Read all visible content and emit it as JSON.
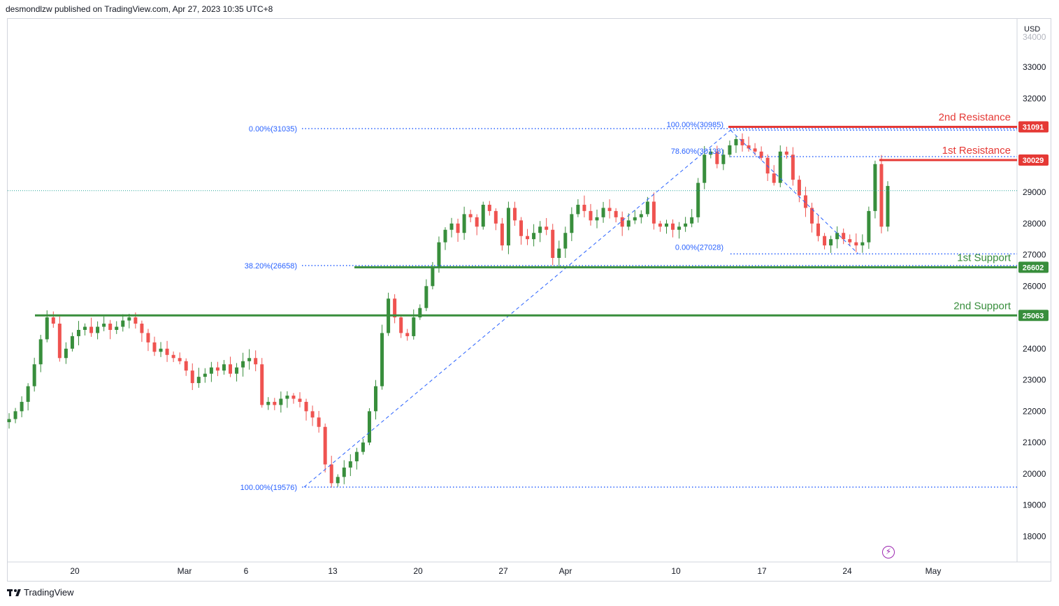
{
  "header": {
    "published": "desmondlzw published on TradingView.com, Apr 27, 2023 10:35 UTC+8"
  },
  "footer": {
    "brand": "TradingView",
    "logo_icon": "tradingview-logo-icon"
  },
  "colors": {
    "up": "#26a69a",
    "up_body": "#388e3c",
    "down": "#ef5350",
    "support": "#388e3c",
    "resistance": "#e53935",
    "fib": "#2962ff",
    "grid": "#f0f3fa"
  },
  "chart_data": {
    "type": "candlestick",
    "currency": "USD",
    "y_ticks": [
      "33000",
      "32000",
      "31000",
      "30000",
      "29000",
      "28000",
      "27000",
      "26000",
      "25000",
      "24000",
      "23000",
      "22000",
      "21000",
      "20000",
      "19000",
      "18000"
    ],
    "ylim": [
      17200,
      34300
    ],
    "x_ticks": [
      "20",
      "Mar",
      "6",
      "13",
      "20",
      "27",
      "Apr",
      "10",
      "17",
      "24",
      "May"
    ],
    "levels": [
      {
        "name": "2nd Resistance",
        "value": 31091,
        "label": "31091",
        "kind": "resistance"
      },
      {
        "name": "1st Resistance",
        "value": 30029,
        "label": "30029",
        "kind": "resistance"
      },
      {
        "name": "1st Support",
        "value": 26602,
        "label": "26602",
        "kind": "support"
      },
      {
        "name": "2nd Support",
        "value": 25063,
        "label": "25063",
        "kind": "support"
      }
    ],
    "fib_labels": [
      {
        "text": "0.00%(31035)",
        "value": 31035
      },
      {
        "text": "38.20%(26658)",
        "value": 26658
      },
      {
        "text": "100.00%(19576)",
        "value": 19576
      },
      {
        "text": "100.00%(30985)",
        "value": 30985
      },
      {
        "text": "78.60%(30138)",
        "value": 30138
      },
      {
        "text": "0.00%(27028)",
        "value": 27028
      }
    ],
    "current_price": 29050,
    "series_closes": [
      21750,
      22000,
      22300,
      22800,
      23500,
      24300,
      25000,
      24800,
      23700,
      24000,
      24400,
      24600,
      24700,
      24500,
      24700,
      24800,
      24600,
      24700,
      24900,
      25000,
      24800,
      24500,
      24200,
      23900,
      24000,
      23800,
      23700,
      23600,
      23300,
      22900,
      23100,
      23200,
      23400,
      23300,
      23500,
      23200,
      23400,
      23600,
      23700,
      23500,
      22200,
      22300,
      22200,
      22400,
      22500,
      22400,
      22300,
      22000,
      21800,
      21500,
      20300,
      19700,
      19900,
      20200,
      20400,
      20700,
      21000,
      22000,
      22800,
      24500,
      25600,
      25000,
      24500,
      24400,
      25000,
      25300,
      26000,
      26600,
      27400,
      27800,
      28000,
      27700,
      28300,
      28200,
      27900,
      28600,
      28400,
      28000,
      27300,
      28500,
      28100,
      27600,
      27500,
      27700,
      27900,
      27800,
      26900,
      27200,
      27700,
      28300,
      28600,
      28400,
      28100,
      28200,
      28500,
      28400,
      28200,
      27900,
      28100,
      28200,
      28300,
      28700,
      28000,
      27900,
      28000,
      27800,
      27900,
      28000,
      28200,
      29300,
      30200,
      30300,
      29900,
      30200,
      30500,
      30700,
      30500,
      30400,
      30300,
      30100,
      29600,
      29300,
      30300,
      30200,
      29400,
      28900,
      28500,
      28000,
      27600,
      27300,
      27500,
      27700,
      27500,
      27400,
      27300,
      27400,
      28400,
      29900,
      27900,
      29200
    ]
  }
}
